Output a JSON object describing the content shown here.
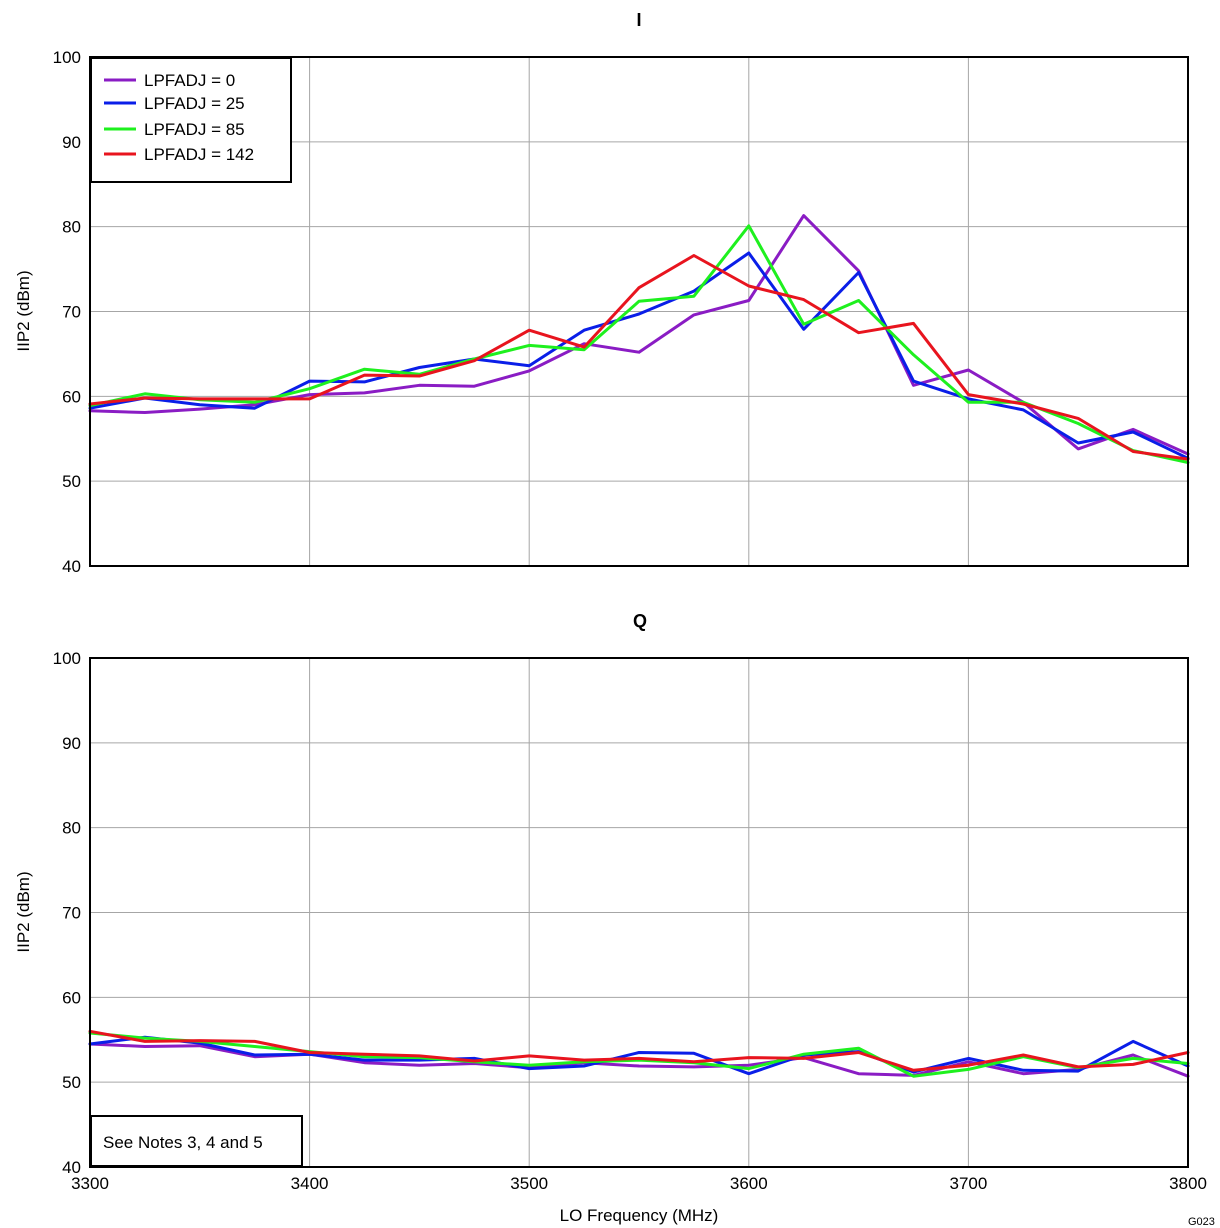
{
  "chart_data": [
    {
      "type": "line",
      "title": "I",
      "xlabel": "",
      "ylabel": "IIP2 (dBm)",
      "xlim": [
        3300,
        3800
      ],
      "ylim": [
        40,
        100
      ],
      "xticks": [
        3300,
        3400,
        3500,
        3600,
        3700,
        3800
      ],
      "yticks": [
        40,
        50,
        60,
        70,
        80,
        90,
        100
      ],
      "grid": true,
      "legend_position": "top-left",
      "x": [
        3300,
        3325,
        3350,
        3375,
        3400,
        3425,
        3450,
        3475,
        3500,
        3525,
        3550,
        3575,
        3600,
        3625,
        3650,
        3675,
        3700,
        3725,
        3750,
        3775,
        3800
      ],
      "series": [
        {
          "name": "LPFADJ = 0",
          "color": "#8a1cc4",
          "values": [
            58.3,
            58.1,
            58.5,
            59.0,
            60.2,
            60.4,
            61.3,
            61.2,
            63.0,
            66.2,
            65.2,
            69.6,
            71.3,
            81.3,
            74.8,
            61.3,
            63.1,
            59.3,
            53.8,
            56.1,
            53.2
          ]
        },
        {
          "name": "LPFADJ = 25",
          "color": "#0a1ee8",
          "values": [
            58.6,
            59.8,
            59.0,
            58.6,
            61.8,
            61.7,
            63.4,
            64.4,
            63.6,
            67.8,
            69.7,
            72.4,
            76.9,
            67.9,
            74.6,
            61.8,
            59.7,
            58.4,
            54.5,
            55.8,
            52.7
          ]
        },
        {
          "name": "LPFADJ = 85",
          "color": "#1ef01e",
          "values": [
            58.9,
            60.3,
            59.6,
            59.3,
            60.9,
            63.2,
            62.6,
            64.4,
            66.0,
            65.5,
            71.2,
            71.8,
            80.1,
            68.5,
            71.3,
            64.9,
            59.3,
            59.3,
            56.8,
            53.6,
            52.2
          ]
        },
        {
          "name": "LPFADJ = 142",
          "color": "#e8141e",
          "values": [
            59.1,
            59.8,
            59.7,
            59.7,
            59.7,
            62.5,
            62.4,
            64.2,
            67.8,
            65.8,
            72.8,
            76.6,
            73.0,
            71.4,
            67.5,
            68.6,
            60.2,
            59.1,
            57.4,
            53.5,
            52.6
          ]
        }
      ]
    },
    {
      "type": "line",
      "title": "Q",
      "xlabel": "LO Frequency (MHz)",
      "ylabel": "IIP2 (dBm)",
      "xlim": [
        3300,
        3800
      ],
      "ylim": [
        40,
        100
      ],
      "xticks": [
        3300,
        3400,
        3500,
        3600,
        3700,
        3800
      ],
      "yticks": [
        40,
        50,
        60,
        70,
        80,
        90,
        100
      ],
      "grid": true,
      "annotation": "See Notes 3, 4 and 5",
      "annotation_position": "bottom-left",
      "x": [
        3300,
        3325,
        3350,
        3375,
        3400,
        3425,
        3450,
        3475,
        3500,
        3525,
        3550,
        3575,
        3600,
        3625,
        3650,
        3675,
        3700,
        3725,
        3750,
        3775,
        3800
      ],
      "series": [
        {
          "name": "LPFADJ = 0",
          "color": "#8a1cc4",
          "values": [
            54.5,
            54.2,
            54.3,
            53.0,
            53.3,
            52.3,
            52.0,
            52.2,
            51.7,
            52.3,
            51.9,
            51.8,
            52.0,
            52.9,
            51.0,
            50.8,
            52.4,
            51.0,
            51.5,
            53.2,
            50.7
          ]
        },
        {
          "name": "LPFADJ = 25",
          "color": "#0a1ee8",
          "values": [
            54.5,
            55.3,
            54.6,
            53.2,
            53.3,
            52.6,
            52.6,
            52.8,
            51.6,
            51.9,
            53.5,
            53.4,
            51.0,
            53.2,
            53.6,
            51.2,
            52.8,
            51.4,
            51.3,
            54.8,
            51.9
          ]
        },
        {
          "name": "LPFADJ = 85",
          "color": "#1ef01e",
          "values": [
            55.8,
            55.2,
            54.8,
            54.2,
            53.6,
            53.0,
            52.9,
            52.4,
            52.0,
            52.4,
            52.6,
            52.3,
            51.6,
            53.3,
            54.0,
            50.7,
            51.5,
            53.0,
            51.7,
            52.8,
            52.2
          ]
        },
        {
          "name": "LPFADJ = 142",
          "color": "#e8141e",
          "values": [
            56.0,
            54.8,
            54.9,
            54.8,
            53.5,
            53.3,
            53.1,
            52.5,
            53.1,
            52.6,
            52.8,
            52.4,
            52.9,
            52.8,
            53.5,
            51.4,
            52.0,
            53.2,
            51.8,
            52.1,
            53.5
          ]
        }
      ]
    }
  ],
  "footer_code": "G023"
}
